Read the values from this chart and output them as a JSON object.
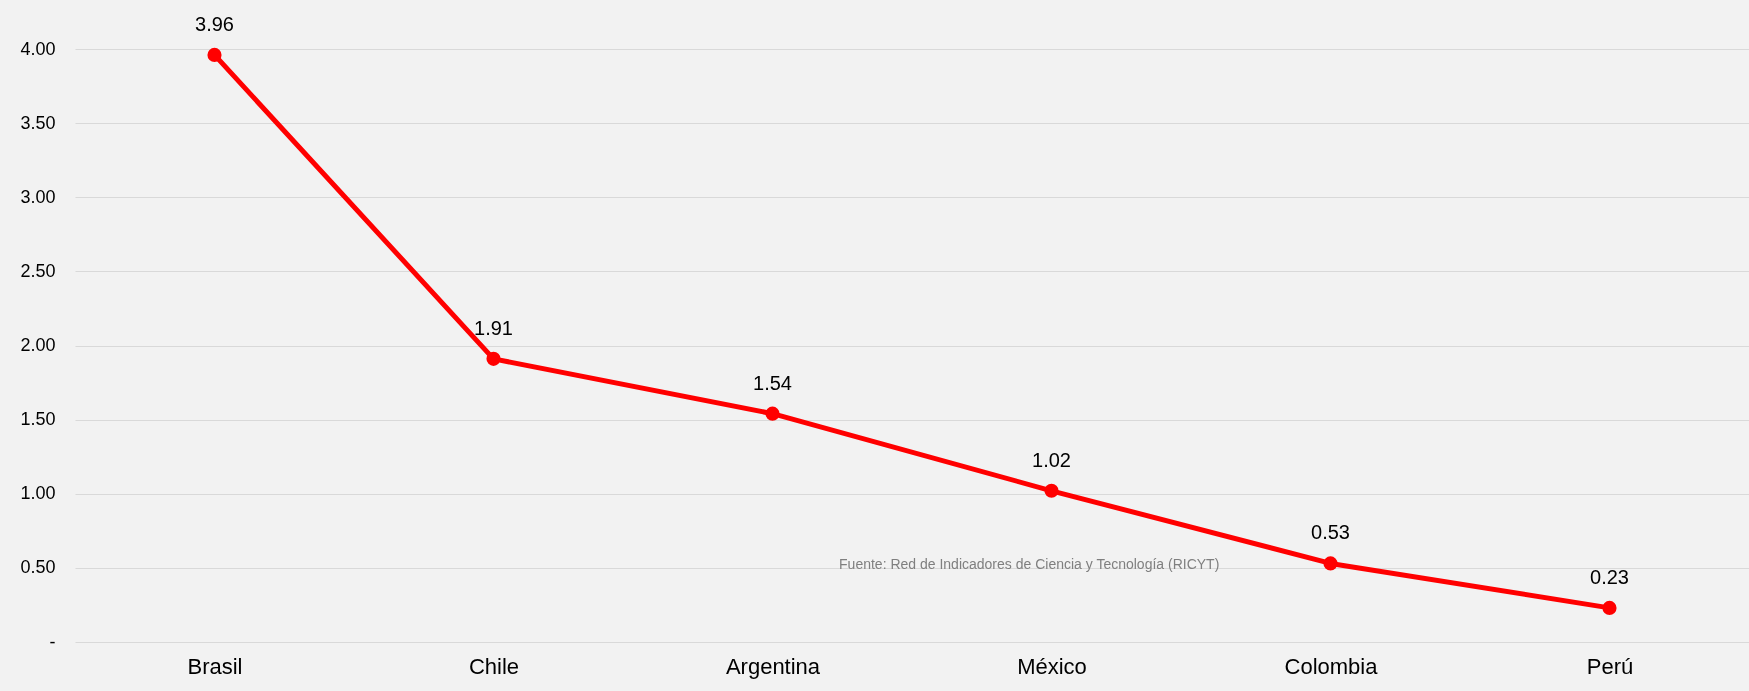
{
  "chart_data": {
    "type": "line",
    "categories": [
      "Brasil",
      "Chile",
      "Argentina",
      "México",
      "Colombia",
      "Perú"
    ],
    "series": [
      {
        "color": "#ff0000",
        "values": [
          3.96,
          1.91,
          1.54,
          1.02,
          0.53,
          0.23
        ]
      }
    ],
    "ylim": [
      0,
      4.0
    ],
    "yticks": [
      {
        "value": 0,
        "label": "-"
      },
      {
        "value": 0.5,
        "label": "0.50"
      },
      {
        "value": 1.0,
        "label": "1.00"
      },
      {
        "value": 1.5,
        "label": "1.50"
      },
      {
        "value": 2.0,
        "label": "2.00"
      },
      {
        "value": 2.5,
        "label": "2.50"
      },
      {
        "value": 3.0,
        "label": "3.00"
      },
      {
        "value": 3.5,
        "label": "3.50"
      },
      {
        "value": 4.0,
        "label": "4.00"
      }
    ],
    "grid": "y",
    "marker": "circle",
    "line_style": "solid",
    "data_labels": true,
    "annotations": [
      "Fuente: Red de Indicadores de Ciencia y Tecnología (RICYT)"
    ]
  }
}
